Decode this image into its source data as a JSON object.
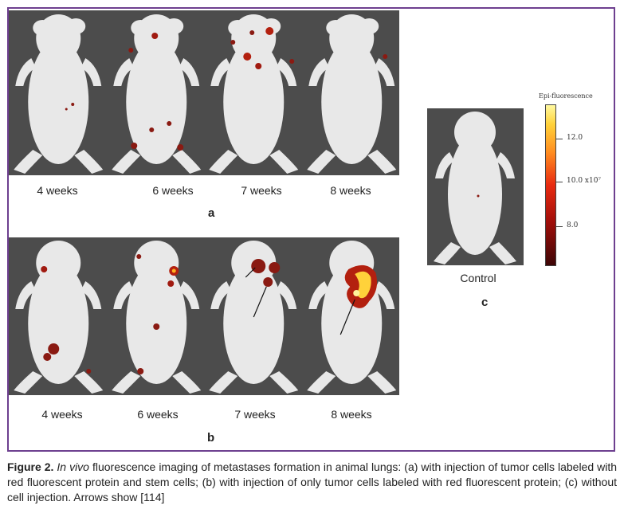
{
  "panel_a": {
    "letter": "a",
    "weeks": [
      "4 weeks",
      "6 weeks",
      "7 weeks",
      "8 weeks"
    ]
  },
  "panel_b": {
    "letter": "b",
    "weeks": [
      "4 weeks",
      "6 weeks",
      "7 weeks",
      "8 weeks"
    ]
  },
  "panel_c": {
    "letter": "c",
    "label": "Control"
  },
  "scale": {
    "title": "Epi-fluorescence",
    "ticks": [
      "12.0",
      "10.0 x10⁷",
      "8.0"
    ],
    "colors": {
      "high": "#fff9a0",
      "mid": "#e82a10",
      "low": "#3d0606"
    }
  },
  "caption": {
    "figure": "Figure 2.",
    "italic": "In vivo",
    "text": " fluorescence imaging of metastases formation in animal lungs: (a) with injection of tumor cells labeled with red fluorescent protein and stem cells; (b) with injection of only tumor cells labeled with red fluorescent protein; (c) without cell injection. Arrows show [114]"
  },
  "colors": {
    "frame": "#6d3f8f",
    "panel_bg": "#4c4c4c",
    "mouse": "#e8e8e8"
  }
}
